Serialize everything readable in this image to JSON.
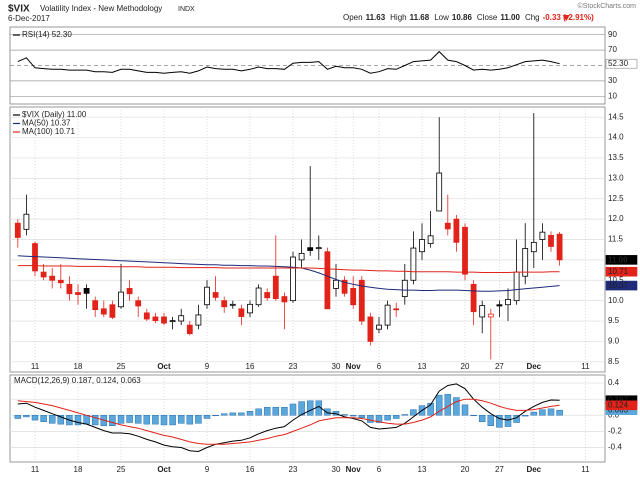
{
  "header": {
    "symbol": "$VIX",
    "name": "Volatility Index - New Methodology",
    "exchange": "INDX",
    "date": "6-Dec-2017",
    "copyright": "©StockCharts.com",
    "quote": [
      {
        "label": "Open",
        "value": "11.63"
      },
      {
        "label": "High",
        "value": "11.68"
      },
      {
        "label": "Low",
        "value": "10.86"
      },
      {
        "label": "Close",
        "value": "11.00"
      },
      {
        "label": "Chg",
        "value": "-0.33 (-2.91%)"
      }
    ]
  },
  "chart_data": [
    {
      "type": "line",
      "ylim": [
        0,
        100
      ],
      "yticks": [
        90,
        70,
        30,
        10
      ],
      "grid": true,
      "midline": 50,
      "series": [
        {
          "name": "RSI(14) 52.30",
          "color": "#000000",
          "last_label": "52.30",
          "values": [
            55,
            60,
            47,
            46,
            45,
            45,
            44,
            44,
            44,
            42,
            42,
            41,
            45,
            45,
            43,
            41,
            41,
            40,
            41,
            42,
            40,
            43,
            48,
            46,
            45,
            45,
            43,
            45,
            48,
            46,
            46,
            45,
            53,
            54,
            54,
            55,
            45,
            49,
            47,
            47,
            45,
            40,
            42,
            46,
            45,
            50,
            55,
            56,
            57,
            68,
            57,
            55,
            50,
            44,
            45,
            44,
            45,
            47,
            51,
            55,
            56,
            57,
            55,
            52.3
          ]
        }
      ]
    },
    {
      "type": "candlestick",
      "categories": [
        null,
        null,
        "11",
        null,
        null,
        null,
        null,
        "18",
        null,
        null,
        null,
        null,
        "25",
        null,
        null,
        null,
        null,
        "Oct",
        null,
        null,
        null,
        null,
        "9",
        null,
        null,
        null,
        null,
        "16",
        null,
        null,
        null,
        null,
        "23",
        null,
        null,
        null,
        null,
        "30",
        null,
        "Nov",
        null,
        null,
        "6",
        null,
        null,
        null,
        null,
        "13",
        null,
        null,
        null,
        null,
        "20",
        null,
        null,
        null,
        "27",
        null,
        null,
        null,
        "Dec",
        null,
        null,
        null,
        null,
        null,
        "11",
        null,
        null
      ],
      "ylim": [
        8.25,
        14.75
      ],
      "yticks": [
        14.5,
        {
          "value": 14,
          "label": "14.0"
        },
        13.5,
        {
          "value": 13,
          "label": "13.0"
        },
        12.5,
        {
          "value": 12,
          "label": "12.0"
        },
        11.5,
        {
          "value": 11,
          "label": "11.0"
        },
        10.5,
        {
          "value": 10,
          "label": "10.0"
        },
        9.5,
        {
          "value": 9,
          "label": "9.0"
        },
        8.5
      ],
      "grid": true,
      "series": [
        {
          "name": "$VIX (Daily) 11.00",
          "color": "#000000",
          "down_color": "#e2231a",
          "last_label": "11.00",
          "open": [
            11.9,
            11.75,
            11.4,
            10.7,
            10.6,
            10.5,
            10.4,
            10.2,
            10.3,
            10.0,
            9.8,
            9.9,
            9.85,
            10.3,
            10.0,
            9.7,
            9.6,
            9.6,
            9.5,
            9.5,
            9.4,
            9.4,
            9.9,
            10.2,
            10.0,
            9.9,
            9.8,
            9.7,
            9.9,
            10.2,
            10.6,
            10.1,
            10.0,
            11.0,
            11.3,
            11.3,
            11.2,
            10.3,
            10.5,
            10.3,
            10.5,
            9.6,
            9.3,
            9.4,
            9.8,
            10.1,
            10.5,
            11.2,
            11.4,
            12.2,
            11.9,
            12.0,
            11.8,
            10.4,
            9.6,
            9.6,
            9.9,
            9.9,
            10.0,
            10.6,
            11.2,
            11.5,
            11.6,
            11.63,
            null,
            null,
            null,
            null,
            null
          ],
          "high": [
            12.0,
            12.6,
            11.45,
            10.9,
            10.8,
            10.9,
            10.6,
            10.4,
            10.4,
            10.1,
            10.0,
            10.0,
            10.9,
            10.5,
            10.1,
            9.8,
            9.7,
            9.7,
            9.6,
            9.8,
            9.5,
            9.9,
            10.5,
            10.6,
            10.1,
            10.0,
            9.9,
            10.0,
            10.4,
            10.3,
            11.6,
            10.2,
            11.2,
            11.5,
            13.3,
            11.6,
            11.3,
            10.9,
            10.6,
            10.6,
            10.6,
            9.7,
            9.6,
            10.0,
            9.95,
            10.9,
            11.7,
            11.9,
            12.2,
            14.5,
            12.6,
            12.1,
            11.9,
            10.5,
            10.0,
            9.8,
            10.0,
            10.3,
            11.5,
            11.9,
            14.6,
            11.9,
            11.7,
            11.68,
            null,
            null,
            null,
            null,
            null
          ],
          "low": [
            11.3,
            11.6,
            10.6,
            10.5,
            10.3,
            10.3,
            10.0,
            9.9,
            9.8,
            9.6,
            9.6,
            9.55,
            9.8,
            10.0,
            9.6,
            9.5,
            9.45,
            9.4,
            9.3,
            9.4,
            9.15,
            9.3,
            9.8,
            10.0,
            9.7,
            9.8,
            9.4,
            9.6,
            9.85,
            10.0,
            10.0,
            9.3,
            9.95,
            10.8,
            11.1,
            11.0,
            9.8,
            10.1,
            10.1,
            9.8,
            9.4,
            8.9,
            9.2,
            9.3,
            9.6,
            9.9,
            10.4,
            11.0,
            11.3,
            12.2,
            11.6,
            11.2,
            10.5,
            9.4,
            9.2,
            8.56,
            9.6,
            9.5,
            9.9,
            10.4,
            10.8,
            11.0,
            11.2,
            10.86,
            null,
            null,
            null,
            null,
            null
          ],
          "close": [
            11.55,
            12.12,
            10.73,
            10.58,
            10.5,
            10.44,
            10.17,
            10.15,
            10.18,
            9.78,
            9.67,
            9.59,
            10.21,
            10.17,
            9.87,
            9.55,
            9.51,
            9.45,
            9.51,
            9.63,
            9.19,
            9.65,
            10.33,
            10.08,
            9.85,
            9.91,
            9.61,
            9.91,
            10.31,
            10.07,
            10.05,
            9.97,
            11.07,
            11.16,
            11.23,
            11.3,
            9.8,
            10.5,
            10.18,
            9.9,
            9.5,
            9.0,
            9.4,
            9.89,
            9.78,
            10.5,
            11.29,
            11.5,
            11.59,
            13.13,
            11.76,
            11.43,
            10.65,
            9.73,
            9.88,
            9.67,
            9.87,
            10.03,
            10.7,
            11.28,
            11.43,
            11.68,
            11.33,
            11.0,
            null,
            null,
            null,
            null,
            null
          ]
        },
        {
          "name": "MA(50) 10.37",
          "color": "#1f2a7a",
          "last_label": "10.37",
          "values": [
            11.1,
            11.09,
            11.08,
            11.07,
            11.06,
            11.05,
            11.04,
            11.03,
            11.02,
            11.01,
            11.0,
            10.99,
            10.98,
            10.97,
            10.96,
            10.95,
            10.94,
            10.93,
            10.92,
            10.91,
            10.9,
            10.89,
            10.88,
            10.88,
            10.87,
            10.87,
            10.86,
            10.86,
            10.85,
            10.85,
            10.84,
            10.83,
            10.82,
            10.8,
            10.75,
            10.68,
            10.6,
            10.52,
            10.45,
            10.4,
            10.36,
            10.33,
            10.3,
            10.28,
            10.27,
            10.26,
            10.26,
            10.25,
            10.25,
            10.26,
            10.26,
            10.26,
            10.25,
            10.24,
            10.23,
            10.23,
            10.24,
            10.25,
            10.27,
            10.29,
            10.31,
            10.33,
            10.35,
            10.37,
            null,
            null,
            null,
            null,
            null
          ]
        },
        {
          "name": "MA(100) 10.71",
          "color": "#e2231a",
          "last_label": "10.71",
          "values": [
            10.86,
            10.86,
            10.86,
            10.85,
            10.85,
            10.85,
            10.85,
            10.84,
            10.84,
            10.84,
            10.84,
            10.83,
            10.83,
            10.83,
            10.83,
            10.82,
            10.82,
            10.82,
            10.82,
            10.81,
            10.81,
            10.81,
            10.81,
            10.81,
            10.8,
            10.8,
            10.8,
            10.8,
            10.8,
            10.8,
            10.8,
            10.8,
            10.8,
            10.8,
            10.8,
            10.79,
            10.78,
            10.77,
            10.76,
            10.75,
            10.75,
            10.74,
            10.73,
            10.73,
            10.72,
            10.72,
            10.71,
            10.71,
            10.71,
            10.71,
            10.71,
            10.7,
            10.7,
            10.7,
            10.69,
            10.69,
            10.69,
            10.69,
            10.7,
            10.7,
            10.7,
            10.7,
            10.71,
            10.71,
            null,
            null,
            null,
            null,
            null
          ]
        }
      ]
    },
    {
      "type": "line",
      "categories": [
        null,
        null,
        "11",
        null,
        null,
        null,
        null,
        "18",
        null,
        null,
        null,
        null,
        "25",
        null,
        null,
        null,
        null,
        "Oct",
        null,
        null,
        null,
        null,
        "9",
        null,
        null,
        null,
        null,
        "16",
        null,
        null,
        null,
        null,
        "23",
        null,
        null,
        null,
        null,
        "30",
        null,
        "Nov",
        null,
        null,
        "6",
        null,
        null,
        null,
        null,
        "13",
        null,
        null,
        null,
        null,
        "20",
        null,
        null,
        null,
        "27",
        null,
        null,
        null,
        "Dec",
        null,
        null,
        null,
        null,
        null,
        "11",
        null,
        null
      ],
      "ylim": [
        -0.58,
        0.5
      ],
      "yticks": [
        0.4,
        0.2,
        {
          "value": 0,
          "label": "0.0"
        },
        -0.2,
        -0.4
      ],
      "grid": true,
      "legend": "MACD(12,26,9) 0.187, 0.124, 0.063",
      "series": [
        {
          "type": "bar",
          "color": "#5aa7dc",
          "last_label": "0.063",
          "values": [
            -0.04,
            -0.02,
            -0.06,
            -0.08,
            -0.1,
            -0.11,
            -0.12,
            -0.12,
            -0.11,
            -0.12,
            -0.13,
            -0.13,
            -0.1,
            -0.09,
            -0.1,
            -0.11,
            -0.11,
            -0.12,
            -0.12,
            -0.1,
            -0.11,
            -0.1,
            -0.04,
            0,
            0.02,
            0.03,
            0.03,
            0.05,
            0.08,
            0.1,
            0.1,
            0.1,
            0.14,
            0.17,
            0.18,
            0.18,
            0.08,
            0.05,
            0.01,
            -0.01,
            -0.03,
            -0.09,
            -0.09,
            -0.06,
            -0.04,
            0.01,
            0.07,
            0.12,
            0.15,
            0.25,
            0.26,
            0.22,
            0.13,
            0,
            -0.08,
            -0.13,
            -0.15,
            -0.14,
            -0.09,
            -0.01,
            0.04,
            0.07,
            0.08,
            0.063,
            null,
            null,
            null,
            null,
            null
          ]
        },
        {
          "color": "#000000",
          "last_label": "0.187",
          "values": [
            0.14,
            0.15,
            0.1,
            0.06,
            0.02,
            -0.02,
            -0.06,
            -0.09,
            -0.11,
            -0.15,
            -0.19,
            -0.22,
            -0.22,
            -0.23,
            -0.26,
            -0.3,
            -0.33,
            -0.37,
            -0.39,
            -0.4,
            -0.44,
            -0.45,
            -0.4,
            -0.36,
            -0.34,
            -0.32,
            -0.31,
            -0.28,
            -0.23,
            -0.19,
            -0.16,
            -0.14,
            -0.06,
            0.01,
            0.06,
            0.11,
            0.03,
            0.02,
            -0.02,
            -0.04,
            -0.07,
            -0.15,
            -0.17,
            -0.16,
            -0.15,
            -0.1,
            -0.02,
            0.06,
            0.13,
            0.3,
            0.37,
            0.39,
            0.33,
            0.2,
            0.1,
            0.02,
            -0.04,
            -0.06,
            -0.03,
            0.05,
            0.11,
            0.16,
            0.19,
            0.187,
            null,
            null,
            null,
            null,
            null
          ]
        },
        {
          "color": "#e2231a",
          "last_label": "0.124",
          "values": [
            0.18,
            0.17,
            0.16,
            0.14,
            0.12,
            0.09,
            0.06,
            0.03,
            0,
            -0.03,
            -0.06,
            -0.09,
            -0.12,
            -0.14,
            -0.16,
            -0.19,
            -0.22,
            -0.25,
            -0.27,
            -0.3,
            -0.33,
            -0.35,
            -0.36,
            -0.36,
            -0.36,
            -0.35,
            -0.34,
            -0.33,
            -0.31,
            -0.29,
            -0.26,
            -0.24,
            -0.2,
            -0.16,
            -0.12,
            -0.07,
            -0.05,
            -0.03,
            -0.03,
            -0.03,
            -0.04,
            -0.06,
            -0.08,
            -0.1,
            -0.11,
            -0.11,
            -0.09,
            -0.06,
            -0.02,
            0.05,
            0.11,
            0.17,
            0.2,
            0.2,
            0.18,
            0.15,
            0.11,
            0.08,
            0.06,
            0.06,
            0.07,
            0.09,
            0.11,
            0.124,
            null,
            null,
            null,
            null,
            null
          ]
        }
      ]
    }
  ]
}
